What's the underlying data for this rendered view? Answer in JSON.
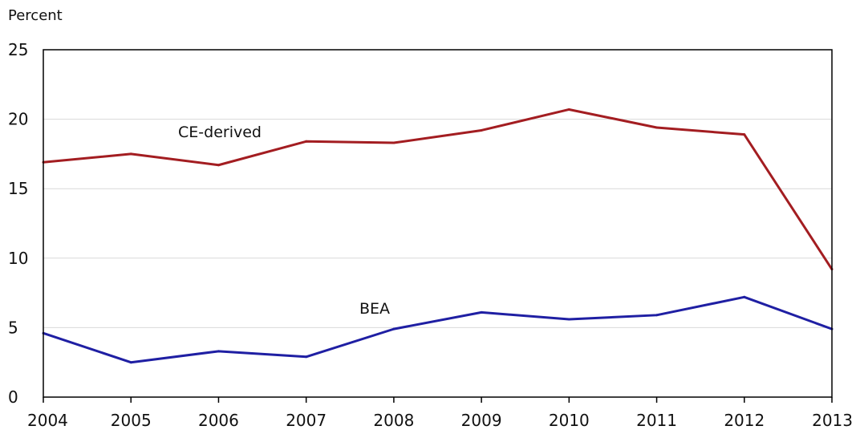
{
  "chart_data": {
    "type": "line",
    "ylabel": "Percent",
    "xlabel": "",
    "x": [
      "2004",
      "2005",
      "2006",
      "2007",
      "2008",
      "2009",
      "2010",
      "2011",
      "2012",
      "2013"
    ],
    "ylim": [
      0,
      25
    ],
    "yticks": [
      "0",
      "5",
      "10",
      "15",
      "20",
      "25"
    ],
    "grid": true,
    "series": [
      {
        "name": "CE-derived",
        "color": "#a31d21",
        "values": [
          16.9,
          17.5,
          16.7,
          18.4,
          18.3,
          19.2,
          20.7,
          19.4,
          18.9,
          9.2
        ]
      },
      {
        "name": "BEA",
        "color": "#1f1fa3",
        "values": [
          4.6,
          2.5,
          3.3,
          2.9,
          4.9,
          6.1,
          5.6,
          5.9,
          7.2,
          4.9
        ]
      }
    ]
  }
}
